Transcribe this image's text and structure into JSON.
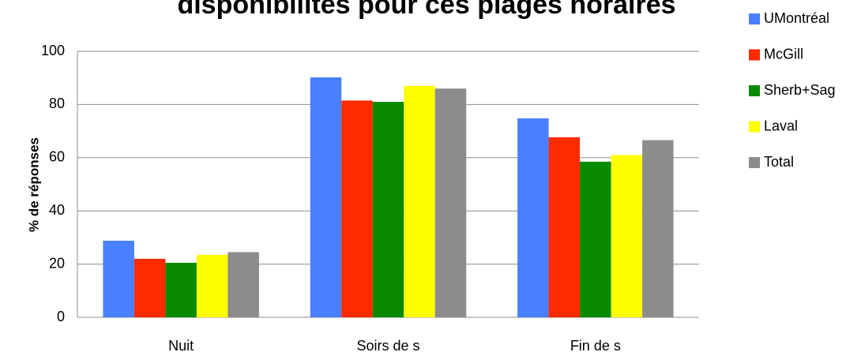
{
  "chart_data": {
    "type": "bar",
    "title": "disponibilités pour ces plages horaires",
    "y_label": "% de réponses",
    "categories": [
      "Nuit",
      "Soirs de s",
      "Fin de s"
    ],
    "series": [
      {
        "name": "UMontréal",
        "color": "#4a7fff",
        "values": [
          28.8,
          90.2,
          74.8
        ]
      },
      {
        "name": "McGill",
        "color": "#ff2a00",
        "values": [
          22,
          81.5,
          67.7
        ]
      },
      {
        "name": "Sherb+Sag",
        "color": "#0a8a00",
        "values": [
          20.5,
          81,
          58.5
        ]
      },
      {
        "name": "Laval",
        "color": "#ffff00",
        "values": [
          23.5,
          87,
          61
        ]
      },
      {
        "name": "Total",
        "color": "#8c8c8c",
        "values": [
          24.5,
          86,
          66.6
        ]
      }
    ],
    "ylim": [
      0,
      100
    ],
    "yticks": [
      0,
      20,
      40,
      60,
      80,
      100
    ],
    "grid": true,
    "legend": "right"
  }
}
